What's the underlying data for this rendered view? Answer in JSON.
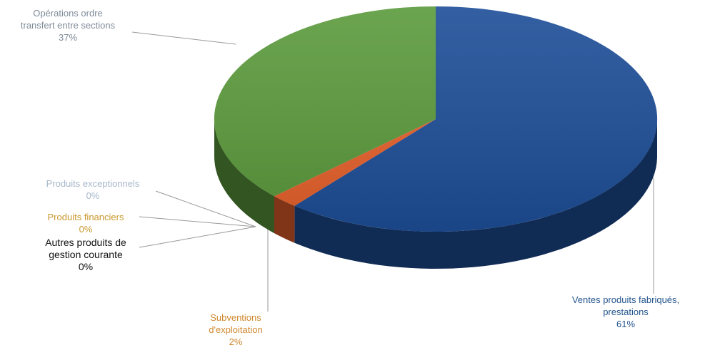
{
  "chart_data": {
    "type": "pie",
    "style": "3d",
    "slices": [
      {
        "label_lines": [
          "Ventes produits fabriqués,",
          "prestations"
        ],
        "pct_label": "61%",
        "value": 61,
        "color": "#1d4e98",
        "label_color": "#27578f"
      },
      {
        "label_lines": [
          "Autres produits de",
          "gestion courante"
        ],
        "pct_label": "0%",
        "value": 0,
        "color": "#2f2f2f",
        "label_color": "#111111"
      },
      {
        "label_lines": [
          "Produits financiers"
        ],
        "pct_label": "0%",
        "value": 0,
        "color": "#d8a33a",
        "label_color": "#c9982e"
      },
      {
        "label_lines": [
          "Produits exceptionnels"
        ],
        "pct_label": "0%",
        "value": 0,
        "color": "#a9bfd8",
        "label_color": "#a7b7c9"
      },
      {
        "label_lines": [
          "Subventions",
          "d'exploitation"
        ],
        "pct_label": "2%",
        "value": 2,
        "color": "#e8612c",
        "label_color": "#d1892f"
      },
      {
        "label_lines": [
          "Opérations ordre",
          "transfert entre sections"
        ],
        "pct_label": "37%",
        "value": 37,
        "color": "#5b9a3c",
        "label_color": "#7f8c99"
      }
    ]
  }
}
